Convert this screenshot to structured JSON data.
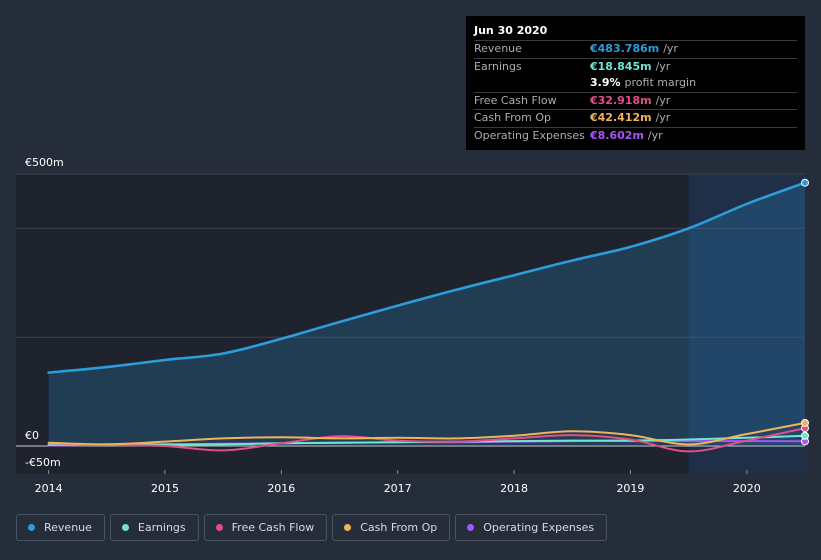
{
  "tooltip": {
    "date": "Jun 30 2020",
    "rows": [
      {
        "label": "Revenue",
        "value": "€483.786m",
        "unit": "/yr",
        "color": "#2d9cdb"
      },
      {
        "label": "Earnings",
        "value": "€18.845m",
        "unit": "/yr",
        "color": "#6ee7d0"
      },
      {
        "label": "",
        "value": "3.9%",
        "unit": "profit margin",
        "color": "#ffffff"
      },
      {
        "label": "Free Cash Flow",
        "value": "€32.918m",
        "unit": "/yr",
        "color": "#e04f8a"
      },
      {
        "label": "Cash From Op",
        "value": "€42.412m",
        "unit": "/yr",
        "color": "#f0b35a"
      },
      {
        "label": "Operating Expenses",
        "value": "€8.602m",
        "unit": "/yr",
        "color": "#a855f7"
      }
    ]
  },
  "legend": [
    {
      "label": "Revenue",
      "color": "#2d9cdb"
    },
    {
      "label": "Earnings",
      "color": "#6ee7d0"
    },
    {
      "label": "Free Cash Flow",
      "color": "#e04f8a"
    },
    {
      "label": "Cash From Op",
      "color": "#f0b35a"
    },
    {
      "label": "Operating Expenses",
      "color": "#a855f7"
    }
  ],
  "chart_data": {
    "type": "line",
    "title": "",
    "xlabel": "",
    "ylabel": "",
    "ylim": [
      -50,
      500
    ],
    "y_tick_labels": [
      "€500m",
      "€0",
      "-€50m"
    ],
    "x_tick_labels": [
      "2014",
      "2015",
      "2016",
      "2017",
      "2018",
      "2019",
      "2020"
    ],
    "x_range": [
      2013.72,
      2020.5
    ],
    "highlight_from": 2019.5,
    "series": [
      {
        "name": "Revenue",
        "color": "#2d9cdb",
        "x": [
          2014.0,
          2014.5,
          2015.0,
          2015.5,
          2016.0,
          2016.5,
          2017.0,
          2017.5,
          2018.0,
          2018.5,
          2019.0,
          2019.5,
          2020.0,
          2020.5
        ],
        "values": [
          135,
          145,
          158,
          170,
          197,
          228,
          258,
          287,
          314,
          341,
          366,
          400,
          445,
          484
        ]
      },
      {
        "name": "Earnings",
        "color": "#6ee7d0",
        "x": [
          2014.0,
          2014.5,
          2015.0,
          2015.5,
          2016.0,
          2016.5,
          2017.0,
          2017.5,
          2018.0,
          2018.5,
          2019.0,
          2019.5,
          2020.0,
          2020.5
        ],
        "values": [
          2,
          3,
          3,
          3,
          5,
          6,
          7,
          8,
          9,
          10,
          10,
          12,
          15,
          18.8
        ]
      },
      {
        "name": "Free Cash Flow",
        "color": "#e04f8a",
        "x": [
          2014.0,
          2014.5,
          2015.0,
          2015.5,
          2016.0,
          2016.5,
          2017.0,
          2017.5,
          2018.0,
          2018.5,
          2019.0,
          2019.5,
          2020.0,
          2020.5
        ],
        "values": [
          5,
          2,
          0,
          -8,
          5,
          18,
          10,
          8,
          14,
          20,
          12,
          -10,
          10,
          32.9
        ]
      },
      {
        "name": "Cash From Op",
        "color": "#f0b35a",
        "x": [
          2014.0,
          2014.5,
          2015.0,
          2015.5,
          2016.0,
          2016.5,
          2017.0,
          2017.5,
          2018.0,
          2018.5,
          2019.0,
          2019.5,
          2020.0,
          2020.5
        ],
        "values": [
          6,
          3,
          8,
          14,
          16,
          14,
          15,
          14,
          19,
          27,
          20,
          3,
          22,
          42.4
        ]
      },
      {
        "name": "Operating Expenses",
        "color": "#a855f7",
        "x": [
          2014.0,
          2014.5,
          2015.0,
          2015.5,
          2016.0,
          2016.5,
          2017.0,
          2017.5,
          2018.0,
          2018.5,
          2019.0,
          2019.5,
          2020.0,
          2020.5
        ],
        "values": [
          1,
          2,
          3,
          4,
          5,
          6,
          7,
          7,
          8,
          9,
          9,
          9,
          9,
          8.6
        ]
      }
    ]
  }
}
